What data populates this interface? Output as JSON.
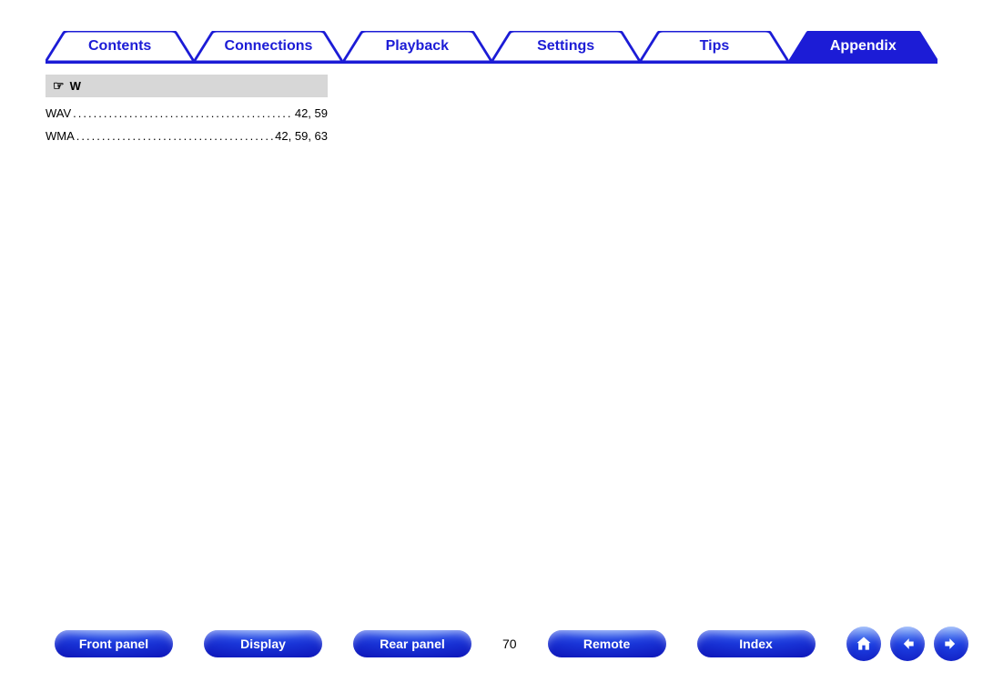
{
  "colors": {
    "brand_blue": "#1c1cd6",
    "pill_gradient_top": "#6fa8ff",
    "pill_gradient_mid": "#1c3de0",
    "pill_gradient_bot": "#0a0aad",
    "heading_bg": "#d7d7d7",
    "text": "#000000",
    "white": "#ffffff"
  },
  "tabs": [
    {
      "label": "Contents",
      "active": false
    },
    {
      "label": "Connections",
      "active": false
    },
    {
      "label": "Playback",
      "active": false
    },
    {
      "label": "Settings",
      "active": false
    },
    {
      "label": "Tips",
      "active": false
    },
    {
      "label": "Appendix",
      "active": true
    }
  ],
  "index": {
    "heading_letter": "W",
    "entries": [
      {
        "term": "WAV",
        "pages": "42, 59"
      },
      {
        "term": "WMA",
        "pages": "42, 59, 63"
      }
    ]
  },
  "bottom_nav": {
    "pills": [
      "Front panel",
      "Display",
      "Rear panel"
    ],
    "page_number": "70",
    "pills2": [
      "Remote",
      "Index"
    ]
  }
}
